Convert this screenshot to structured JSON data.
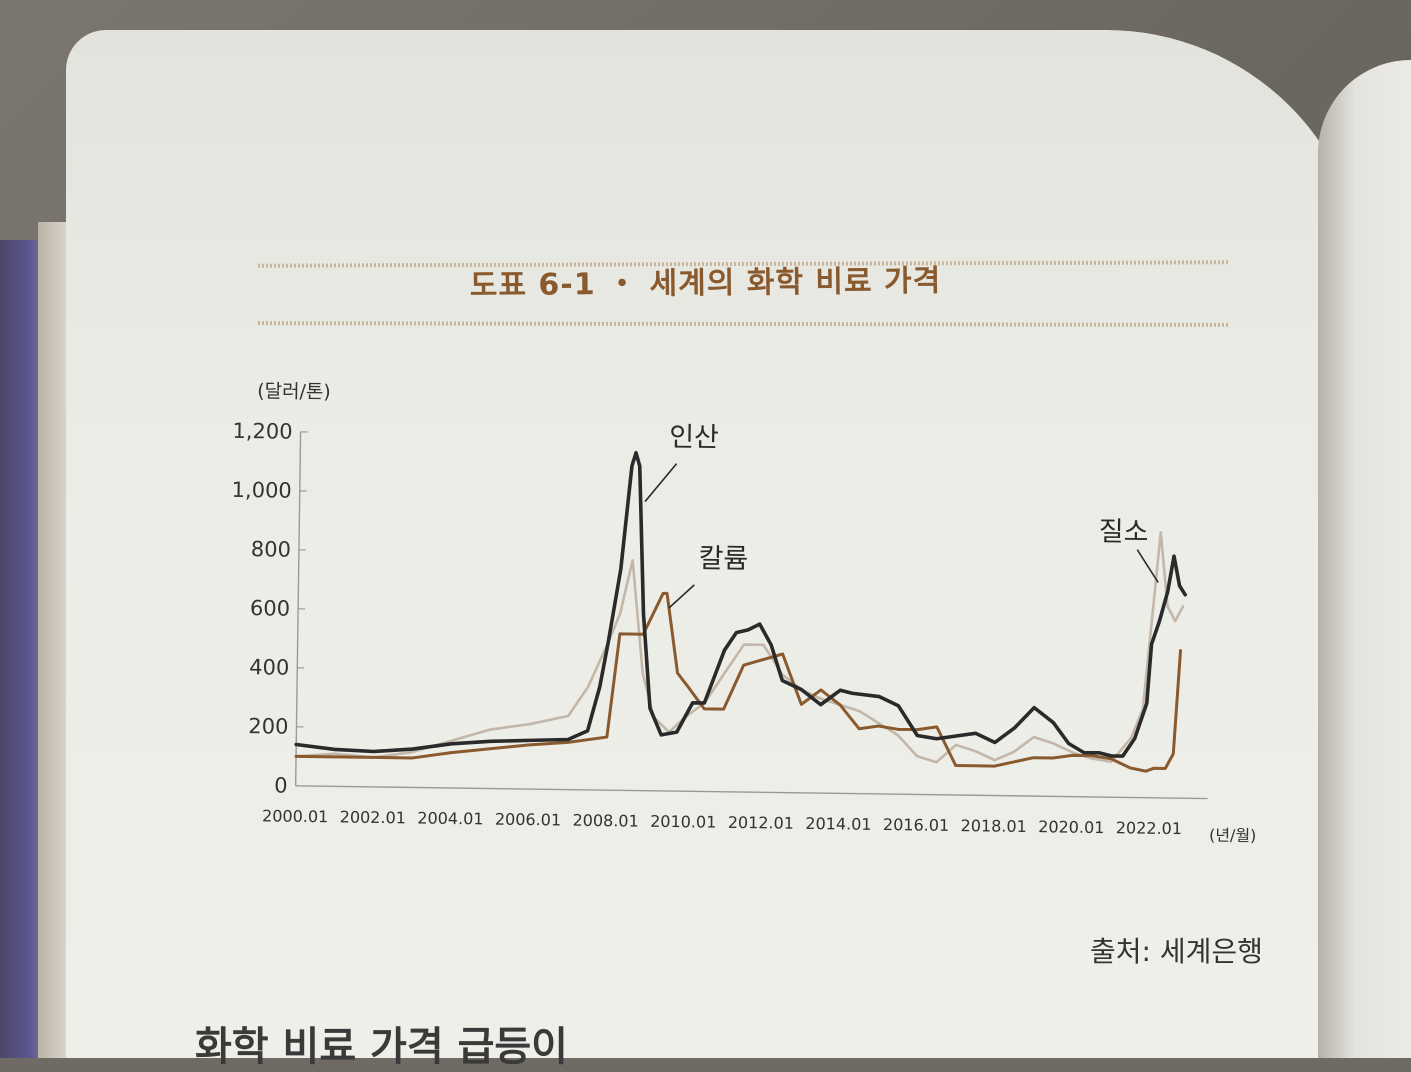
{
  "figure": {
    "title": "도표 6-1 ・ 세계의 화학 비료 가격",
    "source": "출처: 세계은행"
  },
  "body_text": "화학 비료 가격 급등이",
  "chart_data": {
    "type": "line",
    "ylabel": "(달러/톤)",
    "xlabel": "(년/월)",
    "ylim": [
      0,
      1200
    ],
    "yticks": [
      0,
      200,
      400,
      600,
      800,
      1000,
      1200
    ],
    "ytick_labels": [
      "0",
      "200",
      "400",
      "600",
      "800",
      "1,000",
      "1,200"
    ],
    "xlim": [
      2000.0,
      2023.5
    ],
    "xticks": [
      2000,
      2002,
      2004,
      2006,
      2008,
      2010,
      2012,
      2014,
      2016,
      2018,
      2020,
      2022
    ],
    "xtick_labels": [
      "2000.01",
      "2002.01",
      "2004.01",
      "2006.01",
      "2008.01",
      "2010.01",
      "2012.01",
      "2014.01",
      "2016.01",
      "2018.01",
      "2020.01",
      "2022.01"
    ],
    "grid": false,
    "series": [
      {
        "name": "인산",
        "color": "#2a2a2a",
        "x": [
          2000.0,
          2001.0,
          2002.0,
          2003.0,
          2004.0,
          2005.0,
          2006.0,
          2007.0,
          2007.5,
          2007.8,
          2008.0,
          2008.3,
          2008.55,
          2008.65,
          2008.75,
          2008.9,
          2009.1,
          2009.4,
          2009.8,
          2010.2,
          2010.5,
          2011.0,
          2011.3,
          2011.6,
          2011.9,
          2012.2,
          2012.5,
          2013.0,
          2013.5,
          2014.0,
          2014.3,
          2015.0,
          2015.5,
          2016.0,
          2016.5,
          2017.0,
          2017.5,
          2018.0,
          2018.5,
          2019.0,
          2019.5,
          2019.9,
          2020.3,
          2020.7,
          2021.0,
          2021.3,
          2021.6,
          2021.9,
          2022.0,
          2022.2,
          2022.4,
          2022.55,
          2022.7,
          2022.85
        ],
        "values": [
          140,
          125,
          120,
          130,
          150,
          160,
          165,
          170,
          200,
          350,
          500,
          750,
          1100,
          1145,
          1100,
          600,
          280,
          190,
          200,
          300,
          300,
          480,
          540,
          550,
          570,
          500,
          380,
          350,
          300,
          350,
          340,
          330,
          300,
          200,
          190,
          200,
          210,
          180,
          230,
          300,
          250,
          180,
          150,
          150,
          140,
          140,
          200,
          320,
          520,
          600,
          700,
          820,
          720,
          690
        ]
      },
      {
        "name": "칼륨",
        "color": "#8a5a2f",
        "x": [
          2000.0,
          2003.0,
          2004.0,
          2006.0,
          2007.0,
          2008.0,
          2008.3,
          2008.9,
          2009.4,
          2009.5,
          2009.8,
          2010.1,
          2010.5,
          2011.0,
          2011.5,
          2012.5,
          2013.0,
          2013.5,
          2014.0,
          2014.5,
          2015.0,
          2015.5,
          2016.0,
          2016.5,
          2017.0,
          2017.5,
          2018.0,
          2019.0,
          2019.5,
          2020.0,
          2020.5,
          2021.0,
          2021.5,
          2021.9,
          2022.1,
          2022.2,
          2022.4,
          2022.6,
          2022.75
        ],
        "values": [
          100,
          100,
          120,
          150,
          160,
          180,
          530,
          530,
          670,
          670,
          400,
          350,
          280,
          280,
          430,
          470,
          300,
          350,
          300,
          220,
          230,
          220,
          220,
          230,
          100,
          100,
          100,
          130,
          130,
          140,
          140,
          130,
          100,
          90,
          100,
          100,
          100,
          150,
          500
        ]
      },
      {
        "name": "질소",
        "color": "#c2b7a8",
        "x": [
          2000.0,
          2001.0,
          2002.0,
          2003.0,
          2004.0,
          2005.0,
          2006.0,
          2007.0,
          2007.5,
          2008.0,
          2008.3,
          2008.6,
          2008.9,
          2009.2,
          2009.6,
          2010.0,
          2010.5,
          2011.0,
          2011.5,
          2012.0,
          2012.5,
          2013.0,
          2013.5,
          2014.0,
          2014.5,
          2015.0,
          2015.5,
          2016.0,
          2016.5,
          2017.0,
          2017.5,
          2018.0,
          2018.5,
          2019.0,
          2019.5,
          2020.0,
          2020.5,
          2021.0,
          2021.5,
          2021.8,
          2022.0,
          2022.2,
          2022.4,
          2022.6,
          2022.8
        ],
        "values": [
          100,
          110,
          100,
          120,
          160,
          200,
          220,
          250,
          350,
          500,
          600,
          780,
          400,
          250,
          200,
          250,
          300,
          400,
          500,
          500,
          400,
          350,
          320,
          300,
          280,
          240,
          200,
          130,
          110,
          170,
          150,
          120,
          150,
          200,
          180,
          150,
          130,
          120,
          200,
          300,
          600,
          900,
          650,
          600,
          650
        ]
      }
    ]
  }
}
